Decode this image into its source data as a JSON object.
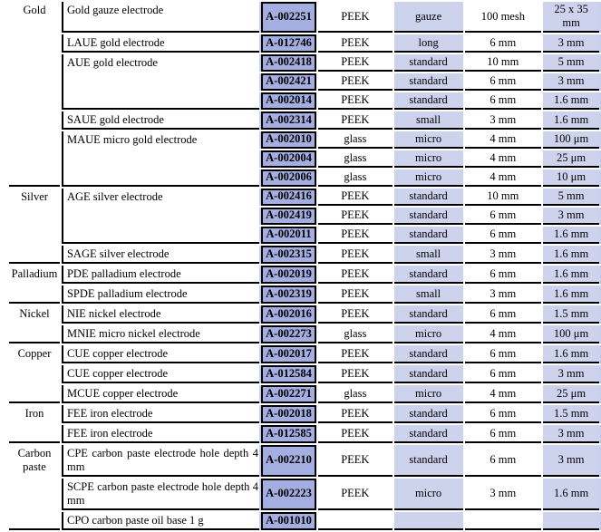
{
  "colors": {
    "code_cell_bg": "#a5aee1",
    "shaded_column_bg": "#cdd2ed",
    "edge_strip": "#c9cfec",
    "border": "#000000",
    "text": "#000000"
  },
  "table": {
    "sections": [
      {
        "material": "Gold",
        "products": [
          {
            "name": "Gold gauze electrode",
            "rows": [
              {
                "code": "A-002251",
                "body": "PEEK",
                "type": "gauze",
                "dim": "100 mesh",
                "dia": "25 x 35 mm"
              }
            ]
          },
          {
            "name": "LAUE gold electrode",
            "rows": [
              {
                "code": "A-012746",
                "body": "PEEK",
                "type": "long",
                "dim": "6 mm",
                "dia": "3 mm"
              }
            ]
          },
          {
            "name": "AUE gold electrode",
            "rows": [
              {
                "code": "A-002418",
                "body": "PEEK",
                "type": "standard",
                "dim": "10 mm",
                "dia": "5 mm"
              },
              {
                "code": "A-002421",
                "body": "PEEK",
                "type": "standard",
                "dim": "6 mm",
                "dia": "3 mm"
              },
              {
                "code": "A-002014",
                "body": "PEEK",
                "type": "standard",
                "dim": "6 mm",
                "dia": "1.6 mm"
              }
            ]
          },
          {
            "name": "SAUE gold electrode",
            "rows": [
              {
                "code": "A-002314",
                "body": "PEEK",
                "type": "small",
                "dim": "3 mm",
                "dia": "1.6 mm"
              }
            ]
          },
          {
            "name": "MAUE micro gold electrode",
            "rows": [
              {
                "code": "A-002010",
                "body": "glass",
                "type": "micro",
                "dim": "4 mm",
                "dia": "100 μm"
              },
              {
                "code": "A-002004",
                "body": "glass",
                "type": "micro",
                "dim": "4 mm",
                "dia": "25 μm"
              },
              {
                "code": "A-002006",
                "body": "glass",
                "type": "micro",
                "dim": "4 mm",
                "dia": "10 μm"
              }
            ]
          }
        ]
      },
      {
        "material": "Silver",
        "products": [
          {
            "name": "AGE silver electrode",
            "rows": [
              {
                "code": "A-002416",
                "body": "PEEK",
                "type": "standard",
                "dim": "10 mm",
                "dia": "5 mm"
              },
              {
                "code": "A-002419",
                "body": "PEEK",
                "type": "standard",
                "dim": "6 mm",
                "dia": "3 mm"
              },
              {
                "code": "A-002011",
                "body": "PEEK",
                "type": "standard",
                "dim": "6 mm",
                "dia": "1.6 mm"
              }
            ]
          },
          {
            "name": "SAGE silver electrode",
            "rows": [
              {
                "code": "A-002315",
                "body": "PEEK",
                "type": "small",
                "dim": "3 mm",
                "dia": "1.6 mm"
              }
            ]
          }
        ]
      },
      {
        "material": "Palladium",
        "products": [
          {
            "name": "PDE palladium electrode",
            "rows": [
              {
                "code": "A-002019",
                "body": "PEEK",
                "type": "standard",
                "dim": "6 mm",
                "dia": "1.6 mm"
              }
            ]
          },
          {
            "name": "SPDE palladium electrode",
            "rows": [
              {
                "code": "A-002319",
                "body": "PEEK",
                "type": "small",
                "dim": "3 mm",
                "dia": "1.6 mm"
              }
            ]
          }
        ]
      },
      {
        "material": "Nickel",
        "products": [
          {
            "name": "NIE nickel electrode",
            "rows": [
              {
                "code": "A-002016",
                "body": "PEEK",
                "type": "standard",
                "dim": "6 mm",
                "dia": "1.5 mm"
              }
            ]
          },
          {
            "name": "MNIE micro nickel electrode",
            "rows": [
              {
                "code": "A-002273",
                "body": "glass",
                "type": "micro",
                "dim": "4 mm",
                "dia": "100 μm"
              }
            ]
          }
        ]
      },
      {
        "material": "Copper",
        "products": [
          {
            "name": "CUE copper electrode",
            "rows": [
              {
                "code": "A-002017",
                "body": "PEEK",
                "type": "standard",
                "dim": "6 mm",
                "dia": "1.6 mm"
              }
            ]
          },
          {
            "name": "CUE copper electrode",
            "rows": [
              {
                "code": "A-012584",
                "body": "PEEK",
                "type": "standard",
                "dim": "6 mm",
                "dia": "3 mm"
              }
            ]
          },
          {
            "name": "MCUE copper electrode",
            "rows": [
              {
                "code": "A-002271",
                "body": "glass",
                "type": "micro",
                "dim": "4 mm",
                "dia": "25 μm"
              }
            ]
          }
        ]
      },
      {
        "material": "Iron",
        "products": [
          {
            "name": "FEE iron electrode",
            "rows": [
              {
                "code": "A-002018",
                "body": "PEEK",
                "type": "standard",
                "dim": "6 mm",
                "dia": "1.5 mm"
              }
            ]
          },
          {
            "name": "FEE iron electrode",
            "rows": [
              {
                "code": "A-012585",
                "body": "PEEK",
                "type": "standard",
                "dim": "6 mm",
                "dia": "3 mm"
              }
            ]
          }
        ]
      },
      {
        "material": "Carbon paste",
        "products": [
          {
            "name": "CPE carbon paste electrode hole depth 4 mm",
            "rows": [
              {
                "code": "A-002210",
                "body": "PEEK",
                "type": "standard",
                "dim": "6 mm",
                "dia": "3 mm"
              }
            ]
          },
          {
            "name": "SCPE carbon paste electrode hole depth 4 mm",
            "rows": [
              {
                "code": "A-002223",
                "body": "PEEK",
                "type": "micro",
                "dim": "3 mm",
                "dia": "1.6 mm"
              }
            ]
          },
          {
            "name": "CPO carbon paste oil base 1 g",
            "rows": [
              {
                "code": "A-001010",
                "body": "",
                "type": "",
                "dim": "",
                "dia": ""
              }
            ]
          }
        ]
      }
    ]
  }
}
